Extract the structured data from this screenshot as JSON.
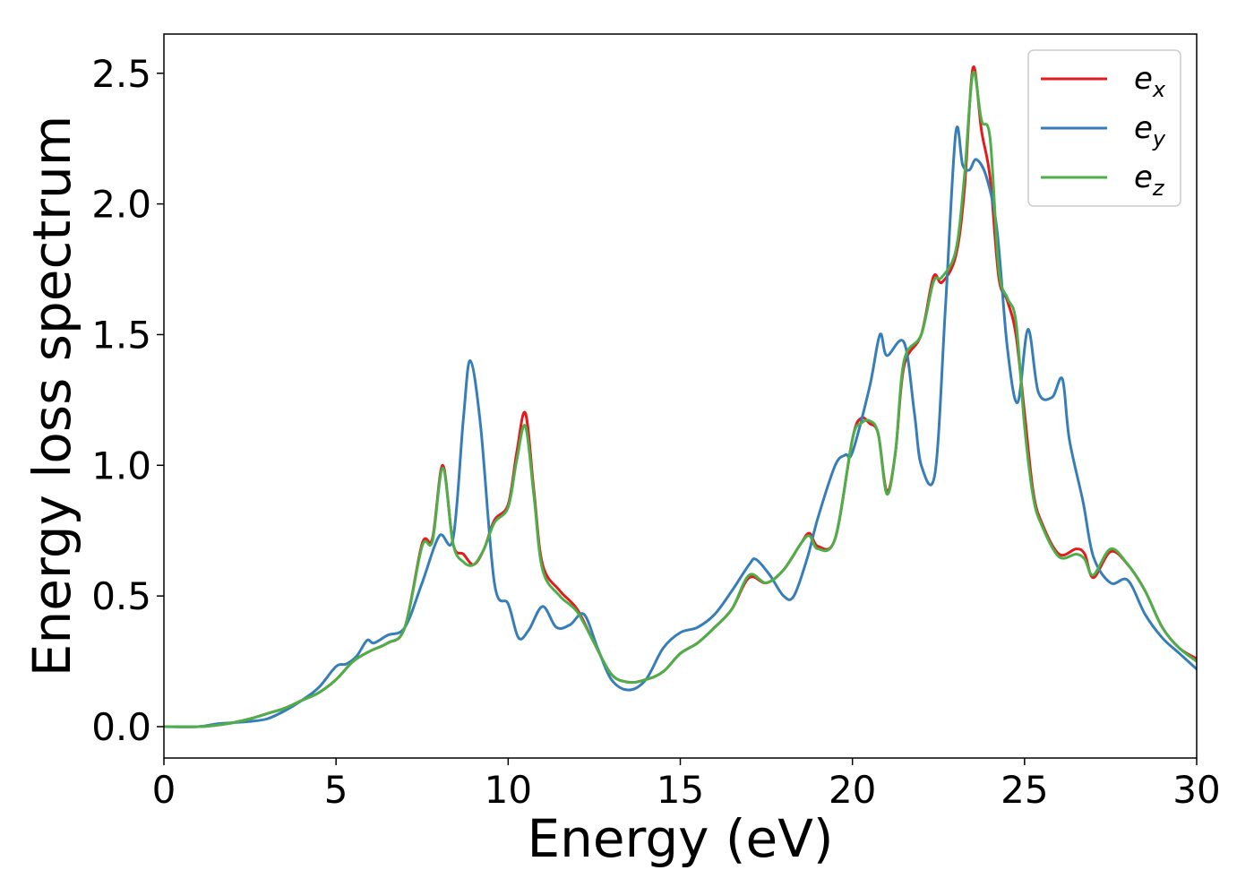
{
  "chart_data": {
    "type": "line",
    "title": "",
    "xlabel": "Energy (eV)",
    "ylabel": "Energy loss spectrum",
    "xlim": [
      0,
      30
    ],
    "ylim": [
      -0.12,
      2.65
    ],
    "xticks": [
      0,
      5,
      10,
      15,
      20,
      25,
      30
    ],
    "xtick_labels": [
      "0",
      "5",
      "10",
      "15",
      "20",
      "25",
      "30"
    ],
    "yticks": [
      0.0,
      0.5,
      1.0,
      1.5,
      2.0,
      2.5
    ],
    "ytick_labels": [
      "0.0",
      "0.5",
      "1.0",
      "1.5",
      "2.0",
      "2.5"
    ],
    "grid": false,
    "legend_position": "top-right",
    "series": [
      {
        "name": "e_x",
        "legend_base": "e",
        "legend_sub": "x",
        "color": "#e41a1c",
        "x": [
          0,
          1,
          1.5,
          2,
          2.5,
          3,
          3.5,
          4,
          4.5,
          5,
          5.5,
          6,
          6.5,
          7,
          7.5,
          7.8,
          8.1,
          8.4,
          8.7,
          9,
          9.3,
          9.6,
          10,
          10.25,
          10.5,
          10.75,
          11,
          11.5,
          12,
          12.5,
          13,
          13.5,
          14,
          14.5,
          15,
          15.5,
          16,
          16.5,
          17,
          17.5,
          18,
          18.5,
          18.75,
          19,
          19.5,
          20,
          20.25,
          20.5,
          20.75,
          21,
          21.25,
          21.5,
          22,
          22.35,
          22.6,
          23,
          23.25,
          23.5,
          23.75,
          24,
          24.25,
          24.5,
          24.75,
          25,
          25.25,
          25.5,
          26,
          26.5,
          26.75,
          27,
          27.5,
          28,
          28.5,
          29,
          29.5,
          30
        ],
        "y": [
          0.0,
          0.0,
          0.005,
          0.015,
          0.03,
          0.05,
          0.07,
          0.1,
          0.13,
          0.18,
          0.25,
          0.29,
          0.32,
          0.38,
          0.7,
          0.72,
          1.0,
          0.7,
          0.66,
          0.62,
          0.68,
          0.79,
          0.85,
          1.05,
          1.2,
          0.9,
          0.62,
          0.52,
          0.45,
          0.32,
          0.2,
          0.17,
          0.18,
          0.21,
          0.28,
          0.32,
          0.38,
          0.45,
          0.57,
          0.55,
          0.6,
          0.7,
          0.74,
          0.69,
          0.72,
          1.1,
          1.18,
          1.16,
          1.12,
          0.9,
          1.05,
          1.38,
          1.5,
          1.72,
          1.7,
          1.8,
          2.05,
          2.52,
          2.28,
          2.1,
          1.72,
          1.63,
          1.5,
          1.2,
          0.9,
          0.78,
          0.66,
          0.68,
          0.66,
          0.57,
          0.67,
          0.62,
          0.52,
          0.38,
          0.3,
          0.26
        ]
      },
      {
        "name": "e_y",
        "legend_base": "e",
        "legend_sub": "y",
        "color": "#377eb8",
        "x": [
          0,
          1,
          1.5,
          2,
          2.5,
          3,
          3.5,
          4,
          4.5,
          5,
          5.3,
          5.6,
          5.9,
          6.1,
          6.5,
          7,
          7.5,
          8,
          8.4,
          8.7,
          8.9,
          9.2,
          9.6,
          10,
          10.3,
          10.6,
          11,
          11.4,
          11.8,
          12.2,
          12.6,
          13,
          13.5,
          14,
          14.5,
          15,
          15.5,
          16,
          16.5,
          17,
          17.2,
          17.6,
          18,
          18.3,
          18.7,
          19,
          19.5,
          19.8,
          20,
          20.5,
          20.8,
          21,
          21.5,
          21.8,
          22,
          22.4,
          22.7,
          23,
          23.2,
          23.4,
          23.6,
          23.9,
          24.2,
          24.5,
          24.8,
          25.1,
          25.4,
          25.8,
          26.1,
          26.3,
          26.7,
          27,
          27.5,
          28,
          28.5,
          29,
          29.5,
          30
        ],
        "y": [
          0.0,
          0.0,
          0.01,
          0.015,
          0.02,
          0.03,
          0.06,
          0.1,
          0.15,
          0.23,
          0.24,
          0.27,
          0.33,
          0.32,
          0.35,
          0.38,
          0.55,
          0.73,
          0.72,
          1.18,
          1.4,
          1.15,
          0.55,
          0.47,
          0.34,
          0.37,
          0.46,
          0.38,
          0.39,
          0.43,
          0.3,
          0.18,
          0.14,
          0.18,
          0.3,
          0.36,
          0.38,
          0.43,
          0.52,
          0.62,
          0.64,
          0.58,
          0.5,
          0.5,
          0.65,
          0.8,
          1.0,
          1.04,
          1.05,
          1.3,
          1.5,
          1.42,
          1.47,
          1.2,
          1.0,
          0.97,
          1.6,
          2.27,
          2.15,
          2.13,
          2.17,
          2.1,
          1.9,
          1.45,
          1.24,
          1.52,
          1.28,
          1.26,
          1.33,
          1.1,
          0.86,
          0.65,
          0.55,
          0.56,
          0.43,
          0.34,
          0.28,
          0.22
        ]
      },
      {
        "name": "e_z",
        "legend_base": "e",
        "legend_sub": "z",
        "color": "#4daf4a",
        "x": [
          0,
          1,
          1.5,
          2,
          2.5,
          3,
          3.5,
          4,
          4.5,
          5,
          5.5,
          6,
          6.5,
          7,
          7.5,
          7.8,
          8.1,
          8.4,
          8.7,
          9,
          9.3,
          9.6,
          10,
          10.25,
          10.5,
          10.75,
          11,
          11.5,
          12,
          12.5,
          13,
          13.5,
          14,
          14.5,
          15,
          15.5,
          16,
          16.5,
          17,
          17.5,
          18,
          18.5,
          18.75,
          19,
          19.5,
          20,
          20.25,
          20.5,
          20.75,
          21,
          21.25,
          21.5,
          22,
          22.35,
          22.6,
          23,
          23.25,
          23.5,
          23.75,
          24,
          24.25,
          24.5,
          24.75,
          25,
          25.25,
          25.5,
          26,
          26.5,
          26.75,
          27,
          27.5,
          28,
          28.5,
          29,
          29.5,
          30
        ],
        "y": [
          0.0,
          0.0,
          0.005,
          0.015,
          0.03,
          0.05,
          0.07,
          0.1,
          0.13,
          0.18,
          0.25,
          0.29,
          0.32,
          0.38,
          0.69,
          0.71,
          0.99,
          0.7,
          0.63,
          0.62,
          0.68,
          0.78,
          0.84,
          1.02,
          1.15,
          0.88,
          0.6,
          0.5,
          0.44,
          0.32,
          0.2,
          0.17,
          0.18,
          0.21,
          0.28,
          0.32,
          0.38,
          0.45,
          0.58,
          0.55,
          0.6,
          0.7,
          0.73,
          0.68,
          0.72,
          1.1,
          1.16,
          1.17,
          1.12,
          0.89,
          1.05,
          1.4,
          1.5,
          1.7,
          1.72,
          1.82,
          2.1,
          2.5,
          2.32,
          2.25,
          1.75,
          1.64,
          1.55,
          1.15,
          0.88,
          0.77,
          0.65,
          0.66,
          0.64,
          0.58,
          0.68,
          0.62,
          0.52,
          0.38,
          0.3,
          0.25
        ]
      }
    ]
  }
}
